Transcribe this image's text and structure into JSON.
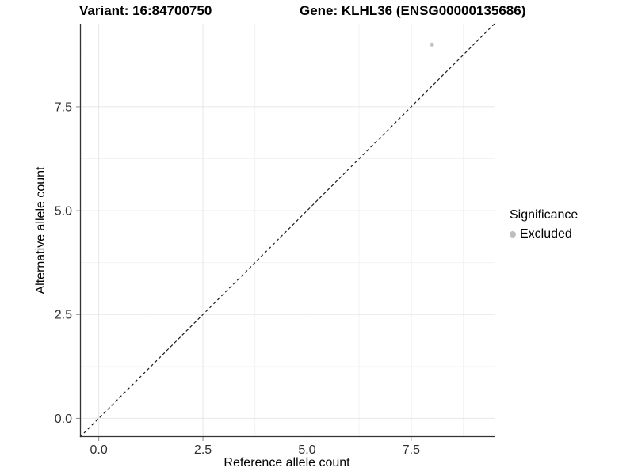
{
  "title": {
    "variant": "Variant: 16:84700750",
    "gene": "Gene: KLHL36 (ENSG00000135686)"
  },
  "legend": {
    "title": "Significance",
    "items": [
      {
        "label": "Excluded",
        "color": "#bebebe"
      }
    ]
  },
  "chart_data": {
    "type": "scatter",
    "title": "Variant: 16:84700750    Gene: KLHL36 (ENSG00000135686)",
    "xlabel": "Reference allele count",
    "ylabel": "Alternative allele count",
    "xlim": [
      -0.45,
      9.5
    ],
    "ylim": [
      -0.45,
      9.5
    ],
    "x_ticks": {
      "values": [
        0,
        2.5,
        5,
        7.5
      ],
      "labels": [
        "0.0",
        "2.5",
        "5.0",
        "7.5"
      ]
    },
    "y_ticks": {
      "values": [
        0,
        2.5,
        5,
        7.5
      ],
      "labels": [
        "0.0",
        "2.5",
        "5.0",
        "7.5"
      ]
    },
    "minor_ticks": [
      1.25,
      3.75,
      6.25,
      8.75
    ],
    "grid": true,
    "legend_position": "right",
    "series": [
      {
        "name": "Excluded",
        "color": "#c3c3c3",
        "points": [
          {
            "x": 8,
            "y": 9
          }
        ]
      }
    ],
    "reference_line": {
      "slope": 1,
      "intercept": 0,
      "style": "dashed",
      "color": "#1a1a1a"
    },
    "colors": {
      "grid_major": "#e7e7e7",
      "grid_minor": "#f3f3f3",
      "axis_line": "#333333",
      "tick_mark": "#8a8a8a",
      "tick_text": "#303030",
      "point": "#c3c3c3",
      "background": "#ffffff"
    }
  }
}
